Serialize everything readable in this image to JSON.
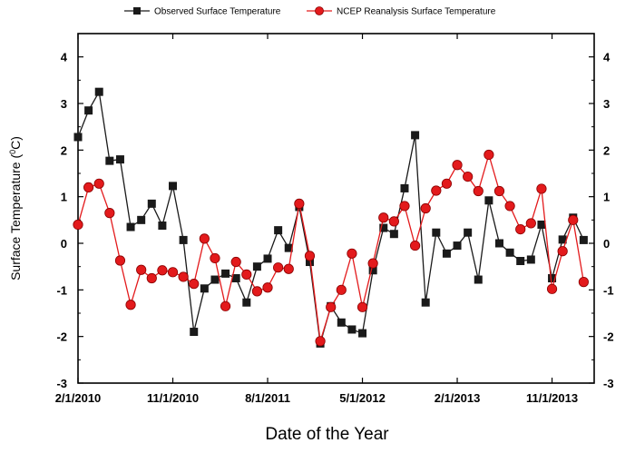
{
  "chart_data": {
    "type": "line",
    "title": "",
    "xlabel": "Date of the Year",
    "ylabel": "Surface Temperature (",
    "ylabel_sup": "0",
    "ylabel_end": "C)",
    "ylim": [
      -3,
      4.5
    ],
    "yticks": [
      -3,
      -2,
      -1,
      0,
      1,
      2,
      3,
      4
    ],
    "xticks": [
      "2/1/2010",
      "11/1/2010",
      "8/1/2011",
      "5/1/2012",
      "2/1/2013",
      "11/1/2013"
    ],
    "x": [
      "2/1/2010",
      "3/1/2010",
      "4/1/2010",
      "5/1/2010",
      "6/1/2010",
      "7/1/2010",
      "8/1/2010",
      "9/1/2010",
      "10/1/2010",
      "11/1/2010",
      "12/1/2010",
      "1/1/2011",
      "2/1/2011",
      "3/1/2011",
      "4/1/2011",
      "5/1/2011",
      "6/1/2011",
      "7/1/2011",
      "8/1/2011",
      "9/1/2011",
      "10/1/2011",
      "11/1/2011",
      "12/1/2011",
      "1/1/2012",
      "2/1/2012",
      "3/1/2012",
      "4/1/2012",
      "5/1/2012",
      "6/1/2012",
      "7/1/2012",
      "8/1/2012",
      "9/1/2012",
      "10/1/2012",
      "11/1/2012",
      "12/1/2012",
      "1/1/2013",
      "2/1/2013",
      "3/1/2013",
      "4/1/2013",
      "5/1/2013",
      "6/1/2013",
      "7/1/2013",
      "8/1/2013",
      "9/1/2013",
      "10/1/2013",
      "11/1/2013",
      "12/1/2013",
      "1/1/2014",
      "2/1/2014",
      "3/1/2014"
    ],
    "legend_position": "top",
    "series": [
      {
        "name": "Observed Surface Temperature",
        "marker": "square",
        "color": "#1a1a1a",
        "values": [
          2.28,
          2.85,
          3.25,
          1.77,
          1.8,
          0.35,
          0.5,
          0.85,
          0.38,
          1.23,
          0.07,
          -1.9,
          -0.97,
          -0.78,
          -0.65,
          -0.75,
          -1.27,
          -0.5,
          -0.33,
          0.28,
          -0.1,
          0.78,
          -0.4,
          -2.15,
          -1.35,
          -1.7,
          -1.85,
          -1.93,
          -0.58,
          0.33,
          0.2,
          1.18,
          2.32,
          -1.27,
          0.23,
          -0.22,
          -0.05,
          0.23,
          -0.78,
          0.92,
          0.0,
          -0.2,
          -0.38,
          -0.35,
          0.4,
          -0.75,
          0.08,
          0.55,
          0.07,
          null
        ]
      },
      {
        "name": "NCEP Reanalysis Surface Temperature",
        "marker": "circle",
        "color": "#e31a1c",
        "values": [
          0.4,
          1.2,
          1.28,
          0.65,
          -0.37,
          -1.32,
          -0.57,
          -0.75,
          -0.58,
          -0.62,
          -0.72,
          -0.87,
          0.1,
          -0.32,
          -1.35,
          -0.4,
          -0.67,
          -1.03,
          -0.95,
          -0.52,
          -0.55,
          0.85,
          -0.27,
          -2.1,
          -1.37,
          -1.0,
          -0.22,
          -1.37,
          -0.43,
          0.55,
          0.47,
          0.8,
          -0.05,
          0.75,
          1.13,
          1.28,
          1.68,
          1.43,
          1.12,
          1.9,
          1.12,
          0.8,
          0.3,
          0.43,
          1.17,
          -0.98,
          -0.17,
          0.5,
          -0.83,
          null
        ]
      }
    ]
  }
}
